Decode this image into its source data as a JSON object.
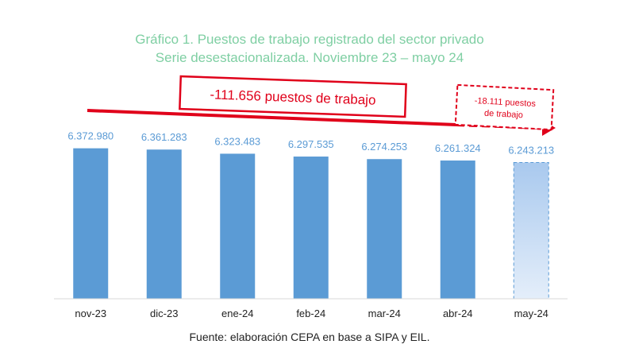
{
  "chart_data": {
    "type": "bar",
    "title": "Gráfico 1. Puestos de trabajo registrado del sector privado",
    "subtitle": "Serie desestacionalizada. Noviembre 23 – mayo 24",
    "categories": [
      "nov-23",
      "dic-23",
      "ene-24",
      "feb-24",
      "mar-24",
      "abr-24",
      "may-24"
    ],
    "values": [
      6372980,
      6361283,
      6323483,
      6297535,
      6274253,
      6261324,
      6243213
    ],
    "data_labels": [
      "6.372.980",
      "6.361.283",
      "6.323.483",
      "6.297.535",
      "6.274.253",
      "6.261.324",
      "6.243.213"
    ],
    "estimated_last": true,
    "ylim": [
      5000000,
      6450000
    ],
    "xlabel": "",
    "ylabel": "",
    "grid": false,
    "annotations": {
      "total_change": "-111.656 puestos de trabajo",
      "last_change_line1": "-18.111 puestos",
      "last_change_line2": "de trabajo"
    },
    "source": "Fuente: elaboración CEPA en base a SIPA y EIL."
  },
  "colors": {
    "bar": "#5b9bd5",
    "bar_estimated": "#bed6f2",
    "label": "#5b9bd5",
    "title": "#7fcfa3",
    "arrow": "#e0001a",
    "axis": "#d9d9d9"
  }
}
